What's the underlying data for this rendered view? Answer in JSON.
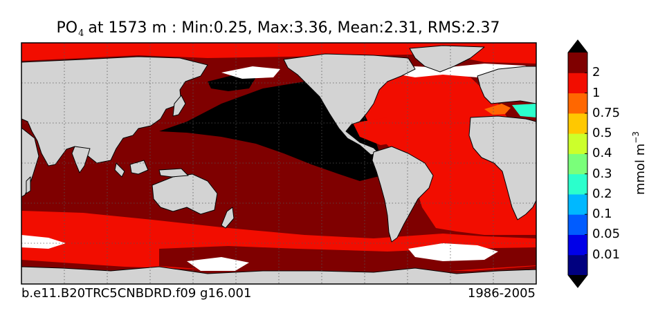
{
  "title": {
    "variable": "PO",
    "subscript": "4",
    "rest": "at 1573 m : Min:0.25, Max:3.36, Mean:2.31, RMS:2.37"
  },
  "footer": {
    "case_name": "b.e11.B20TRC5CNBDRD.f09 g16.001",
    "years": "1986-2005"
  },
  "colorbar": {
    "units_base": "mmol m",
    "units_exponent": "−3",
    "extend": "both",
    "levels": [
      "0.01",
      "0.05",
      "0.1",
      "0.2",
      "0.3",
      "0.4",
      "0.5",
      "0.75",
      "1",
      "2"
    ],
    "colors": [
      "#00007f",
      "#0000e8",
      "#005cff",
      "#00b8ff",
      "#2bffcc",
      "#7aff7a",
      "#ccff2b",
      "#ffc800",
      "#ff6700",
      "#f20d00",
      "#7f0000"
    ],
    "extend_min_color": "#000000",
    "extend_max_color": "#000000"
  },
  "map": {
    "projection": "equirectangular",
    "land_color": "#d3d3d3",
    "missing_color": "#ffffff",
    "gridlines": "dotted",
    "legend_ticks_side": "right"
  }
}
